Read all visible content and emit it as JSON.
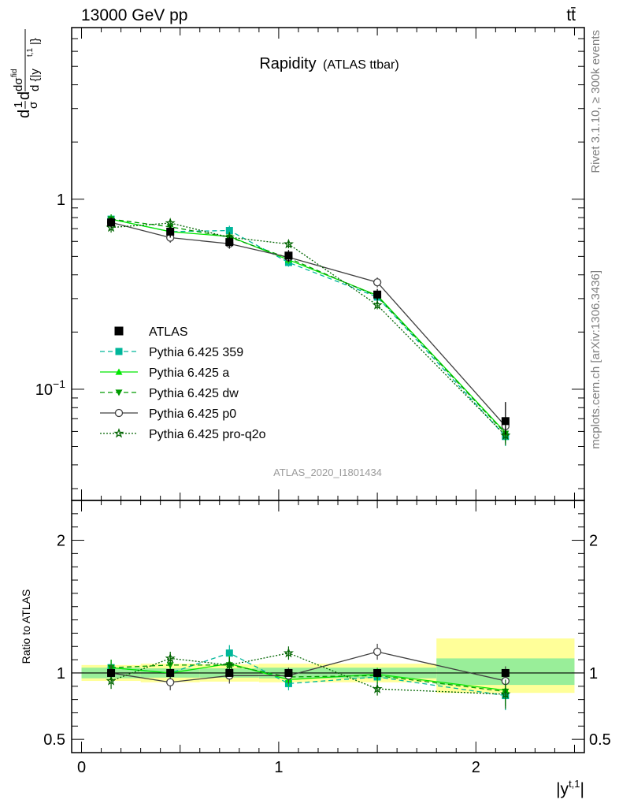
{
  "chart_data": {
    "type": "line",
    "header": {
      "left": "13000 GeV pp",
      "right": "tt̄"
    },
    "title": "Rapidity",
    "subtitle": "(ATLAS ttbar)",
    "watermark": "ATLAS_2020_I1801434",
    "side_labels": {
      "top": "Rivet 3.1.10, ≥ 300k events",
      "bottom": "mcplots.cern.ch [arXiv:1306.3436]"
    },
    "xlabel": "|y",
    "xlabel_sup": "t,1",
    "xlabel_close": "|",
    "ylabel": "dσ/d{|y^t,1|} / σ",
    "ratio_ylabel": "Ratio to ATLAS",
    "xlim": [
      -0.05,
      2.55
    ],
    "ylim": [
      0.026,
      8.0
    ],
    "yscale": "log",
    "ratio_ylim": [
      0.4,
      2.3
    ],
    "x_ticks": [
      0,
      1,
      2
    ],
    "x_tick_labels": [
      "0",
      "1",
      "2"
    ],
    "y_tick_labels": [
      {
        "value": 1,
        "label": "1"
      },
      {
        "value": 0.1,
        "base": "10",
        "exp": "−1"
      }
    ],
    "ratio_y_ticks": [
      0.5,
      1,
      2
    ],
    "ratio_y_tick_labels": [
      "0.5",
      "1",
      "2"
    ],
    "bins": [
      [
        0,
        0.3
      ],
      [
        0.3,
        0.6
      ],
      [
        0.6,
        0.9
      ],
      [
        0.9,
        1.2
      ],
      [
        1.2,
        1.8
      ],
      [
        1.8,
        2.5
      ]
    ],
    "x": [
      0.15,
      0.45,
      0.75,
      1.05,
      1.5,
      2.15
    ],
    "data": {
      "name": "ATLAS",
      "values": [
        0.755,
        0.675,
        0.595,
        0.505,
        0.315,
        0.068
      ],
      "stat_band": [
        [
          0.96,
          1.04
        ],
        [
          0.965,
          1.035
        ],
        [
          0.965,
          1.035
        ],
        [
          0.96,
          1.04
        ],
        [
          0.96,
          1.04
        ],
        [
          0.91,
          1.11
        ]
      ],
      "total_band": [
        [
          0.94,
          1.06
        ],
        [
          0.93,
          1.07
        ],
        [
          0.935,
          1.065
        ],
        [
          0.93,
          1.07
        ],
        [
          0.93,
          1.07
        ],
        [
          0.85,
          1.26
        ]
      ]
    },
    "series": [
      {
        "name": "Pythia 6.425 359",
        "color": "#00b69a",
        "marker": "square",
        "dash": "6,4",
        "ratio": [
          1.04,
          1.0,
          1.15,
          0.92,
          0.97,
          0.83
        ],
        "err": [
          0.06,
          0.05,
          0.06,
          0.05,
          0.05,
          0.11
        ]
      },
      {
        "name": "Pythia 6.425 a",
        "color": "#00e600",
        "marker": "triangle-up",
        "dash": "",
        "ratio": [
          1.04,
          1.0,
          1.07,
          0.95,
          0.99,
          0.87
        ],
        "err": [
          0.06,
          0.05,
          0.06,
          0.05,
          0.05,
          0.11
        ]
      },
      {
        "name": "Pythia 6.425 dw",
        "color": "#009a00",
        "marker": "triangle-down",
        "dash": "6,4",
        "ratio": [
          1.04,
          1.06,
          1.06,
          0.97,
          0.98,
          0.86
        ],
        "err": [
          0.06,
          0.05,
          0.06,
          0.05,
          0.05,
          0.11
        ]
      },
      {
        "name": "Pythia 6.425 p0",
        "color": "#404040",
        "marker": "circle-open",
        "dash": "",
        "ratio": [
          1.0,
          0.93,
          0.98,
          0.98,
          1.16,
          0.94
        ],
        "err": [
          0.06,
          0.06,
          0.06,
          0.06,
          0.06,
          0.11
        ]
      },
      {
        "name": "Pythia 6.425 pro-q2o",
        "color": "#006400",
        "marker": "star",
        "dash": "2,2",
        "ratio": [
          0.94,
          1.11,
          1.06,
          1.15,
          0.88,
          0.84
        ],
        "err": [
          0.06,
          0.05,
          0.06,
          0.05,
          0.05,
          0.11
        ]
      }
    ],
    "legend_position": "lower-left",
    "grid": false
  }
}
